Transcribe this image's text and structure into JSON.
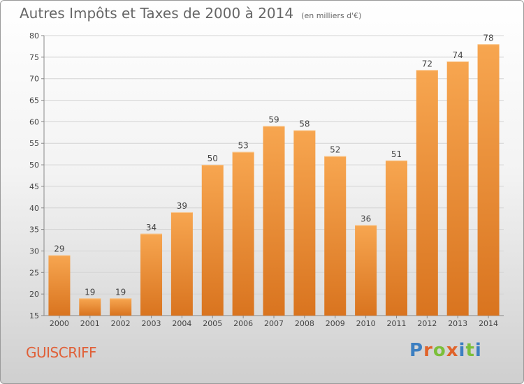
{
  "colors": {
    "bar_light": "#f7a650",
    "bar_dark": "#d9741f",
    "grid": "#d4d4d4",
    "axis_text": "#444444",
    "title_text": "#666666",
    "town_text": "#e06038",
    "logo_letters": [
      "#3c7fc1",
      "#e0632a",
      "#7bbf3a",
      "#e0632a",
      "#3c7fc1",
      "#7bbf3a"
    ]
  },
  "header": {
    "title": "Autres Impôts et Taxes de 2000 à 2014",
    "unit": "(en milliers d'€)"
  },
  "footer": {
    "town": "GUISCRIFF",
    "logo": "Proxiti"
  },
  "chart_data": {
    "type": "bar",
    "title": "Autres Impôts et Taxes de 2000 à 2014",
    "subtitle": "(en milliers d'€)",
    "categories": [
      "2000",
      "2001",
      "2002",
      "2003",
      "2004",
      "2005",
      "2006",
      "2007",
      "2008",
      "2009",
      "2010",
      "2011",
      "2012",
      "2013",
      "2014"
    ],
    "values": [
      29,
      19,
      19,
      34,
      39,
      50,
      53,
      59,
      58,
      52,
      36,
      51,
      72,
      74,
      78
    ],
    "ylim": [
      15,
      80
    ],
    "yticks": [
      15,
      20,
      25,
      30,
      35,
      40,
      45,
      50,
      55,
      60,
      65,
      70,
      75,
      80
    ],
    "grid": true,
    "data_labels": true
  }
}
